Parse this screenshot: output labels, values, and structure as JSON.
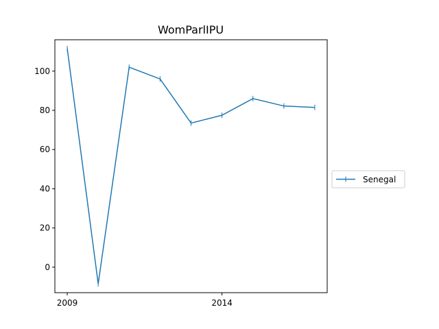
{
  "chart_data": {
    "type": "line",
    "title": "WomParlIPU",
    "xlabel": "",
    "ylabel": "",
    "xlim": [
      2008.6,
      2017.4
    ],
    "ylim": [
      -13,
      116
    ],
    "xticks": [
      2009,
      2014
    ],
    "yticks": [
      0,
      20,
      40,
      60,
      80,
      100
    ],
    "grid": false,
    "legend_position": "center-right-outside",
    "x": [
      2009,
      2010,
      2011,
      2012,
      2013,
      2014,
      2015,
      2016,
      2017
    ],
    "series": [
      {
        "name": "Senegal",
        "color": "#1f77b4",
        "marker": "vline",
        "values": [
          111.5,
          -8.5,
          102,
          96,
          73.5,
          77.5,
          86,
          82.2,
          81.5
        ]
      }
    ]
  }
}
